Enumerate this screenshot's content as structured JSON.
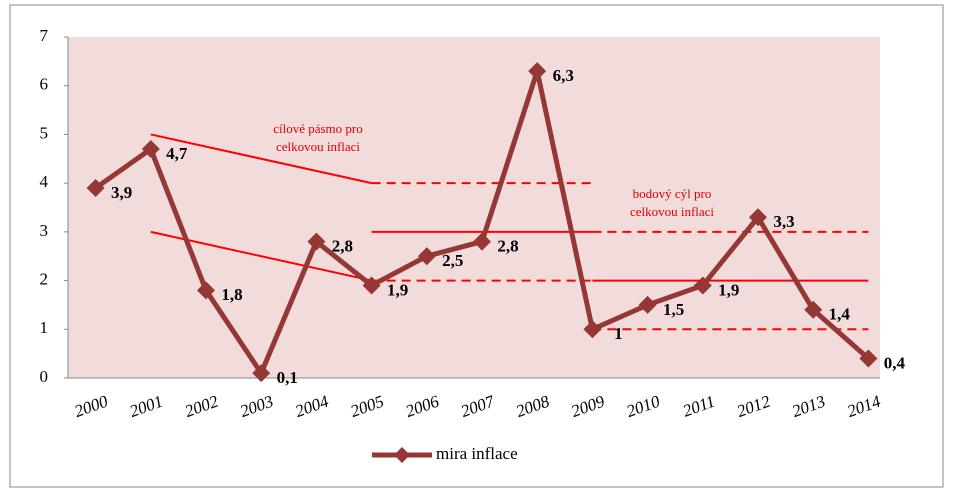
{
  "chart_data": {
    "type": "line",
    "categories": [
      "2000",
      "2001",
      "2002",
      "2003",
      "2004",
      "2005",
      "2006",
      "2007",
      "2008",
      "2009",
      "2010",
      "2011",
      "2012",
      "2013",
      "2014"
    ],
    "series": [
      {
        "name": "mira inflace",
        "color": "#953735",
        "values": [
          3.9,
          4.7,
          1.8,
          0.1,
          2.8,
          1.9,
          2.5,
          2.8,
          6.3,
          1,
          1.5,
          1.9,
          3.3,
          1.4,
          0.4
        ],
        "value_labels": [
          "3,9",
          "4,7",
          "1,8",
          "0,1",
          "2,8",
          "1,9",
          "2,5",
          "2,8",
          "6,3",
          "1",
          "1,5",
          "1,9",
          "3,3",
          "1,4",
          "0,4"
        ]
      }
    ],
    "ylim": [
      0,
      7
    ],
    "yticks": [
      0,
      1,
      2,
      3,
      4,
      5,
      6,
      7
    ],
    "plot_color": "#f2dcdb",
    "legend": "bottom",
    "target_lines": [
      {
        "from": "2001",
        "to": "2005",
        "y": [
          5,
          4
        ],
        "style": "solid"
      },
      {
        "from": "2001",
        "to": "2005",
        "y": [
          3,
          2
        ],
        "style": "solid"
      },
      {
        "from": "2005",
        "to": "2009",
        "y": [
          4,
          4
        ],
        "style": "dashed"
      },
      {
        "from": "2005",
        "to": "2009",
        "y": [
          3,
          3
        ],
        "style": "solid"
      },
      {
        "from": "2009",
        "to": "2014",
        "y": [
          3,
          3
        ],
        "style": "dashed"
      },
      {
        "from": "2005",
        "to": "2009",
        "y": [
          2,
          2
        ],
        "style": "dashed"
      },
      {
        "from": "2009",
        "to": "2014",
        "y": [
          2,
          2
        ],
        "style": "solid"
      },
      {
        "from": "2009",
        "to": "2014",
        "y": [
          1,
          1
        ],
        "style": "dashed"
      }
    ],
    "target_line_color": "#ff0000",
    "annotations": [
      {
        "lines": [
          "cílové pásmo pro",
          "celkovou inflaci"
        ]
      },
      {
        "lines": [
          "bodový cýl pro",
          "celkovou inflaci"
        ]
      }
    ]
  }
}
